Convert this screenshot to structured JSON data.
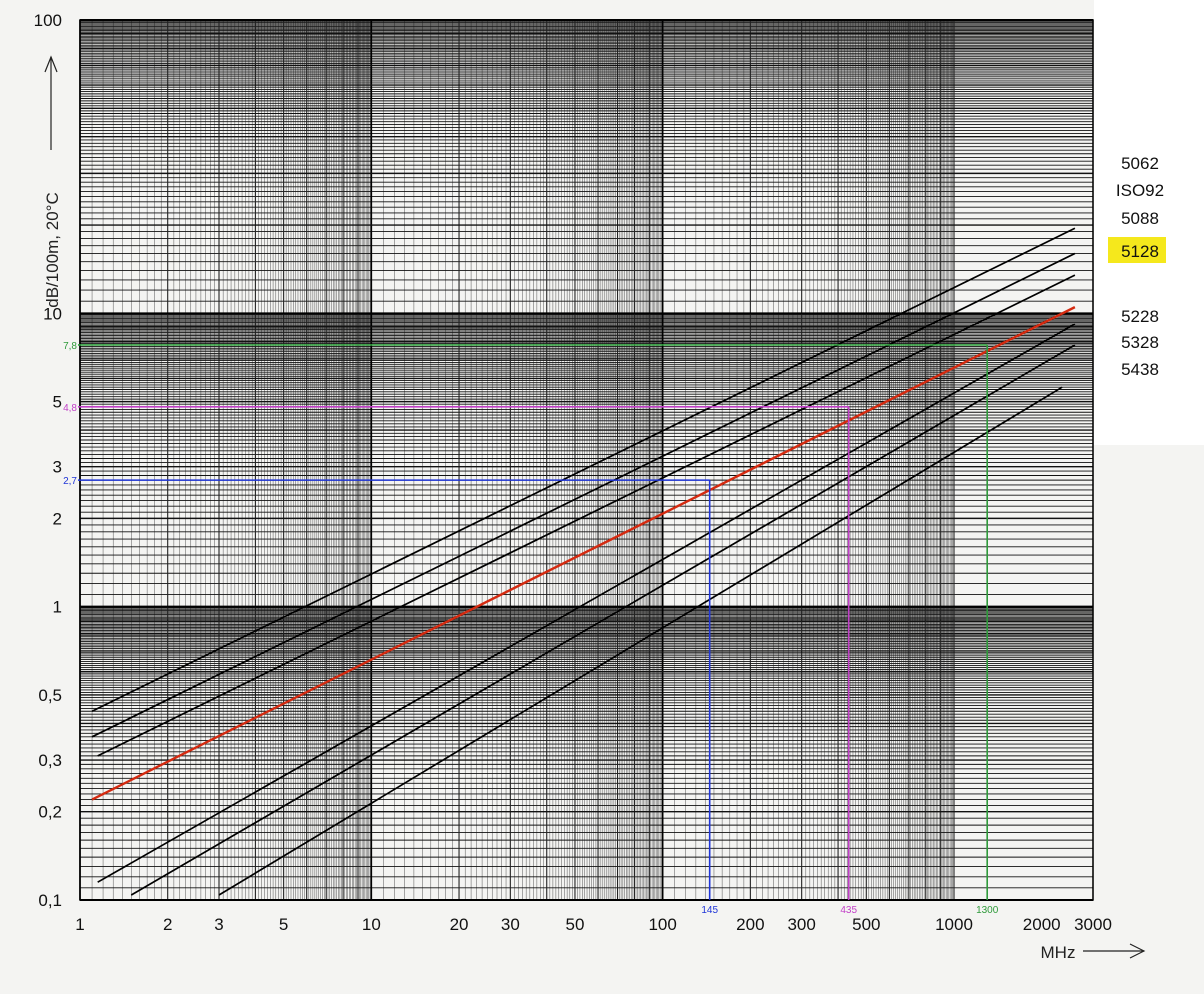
{
  "chart_data": {
    "type": "line",
    "xlabel": "MHz",
    "ylabel": "dB/100m, 20°C",
    "xscale": "log",
    "yscale": "log",
    "xlim": [
      1,
      3000
    ],
    "ylim": [
      0.1,
      100
    ],
    "grid": true,
    "x_ticks": [
      {
        "value": 1,
        "label": "1"
      },
      {
        "value": 2,
        "label": "2"
      },
      {
        "value": 3,
        "label": "3"
      },
      {
        "value": 5,
        "label": "5"
      },
      {
        "value": 10,
        "label": "10"
      },
      {
        "value": 20,
        "label": "20"
      },
      {
        "value": 30,
        "label": "30"
      },
      {
        "value": 50,
        "label": "50"
      },
      {
        "value": 100,
        "label": "100"
      },
      {
        "value": 200,
        "label": "200"
      },
      {
        "value": 300,
        "label": "300"
      },
      {
        "value": 500,
        "label": "500"
      },
      {
        "value": 1000,
        "label": "1000"
      },
      {
        "value": 2000,
        "label": "2000"
      },
      {
        "value": 3000,
        "label": "3000"
      }
    ],
    "y_ticks": [
      {
        "value": 0.1,
        "label": "0,1"
      },
      {
        "value": 0.2,
        "label": "0,2"
      },
      {
        "value": 0.3,
        "label": "0,3"
      },
      {
        "value": 0.5,
        "label": "0,5"
      },
      {
        "value": 1,
        "label": "1"
      },
      {
        "value": 2,
        "label": "2"
      },
      {
        "value": 3,
        "label": "3"
      },
      {
        "value": 5,
        "label": "5"
      },
      {
        "value": 10,
        "label": "10"
      },
      {
        "value": 100,
        "label": "100"
      }
    ],
    "series": [
      {
        "name": "5062",
        "color": "#000000",
        "x": [
          1.1,
          2600
        ],
        "y": [
          0.44,
          19.5
        ]
      },
      {
        "name": "ISO92",
        "color": "#000000",
        "x": [
          1.1,
          2600
        ],
        "y": [
          0.36,
          16.0
        ]
      },
      {
        "name": "5088",
        "color": "#000000",
        "x": [
          1.15,
          2600
        ],
        "y": [
          0.31,
          13.5
        ]
      },
      {
        "name": "5128",
        "color": "#d42a10",
        "highlight": "#f5e81c",
        "x": [
          1.1,
          2600
        ],
        "y": [
          0.22,
          10.5
        ]
      },
      {
        "name": "5228",
        "color": "#000000",
        "x": [
          1.15,
          2600
        ],
        "y": [
          0.115,
          9.2
        ]
      },
      {
        "name": "5328",
        "color": "#000000",
        "x": [
          1.5,
          2600
        ],
        "y": [
          0.104,
          7.8
        ]
      },
      {
        "name": "5438",
        "color": "#000000",
        "x": [
          3,
          2350
        ],
        "y": [
          0.104,
          5.6
        ]
      }
    ],
    "annotations": [
      {
        "x": 145,
        "y": 2.7,
        "x_label": "145",
        "y_label": "2,7",
        "color": "#1f35d8"
      },
      {
        "x": 435,
        "y": 4.8,
        "x_label": "435",
        "y_label": "4,8",
        "color": "#c23fc8"
      },
      {
        "x": 1300,
        "y": 7.8,
        "x_label": "1300",
        "y_label": "7,8",
        "color": "#2e9a3a"
      }
    ]
  }
}
